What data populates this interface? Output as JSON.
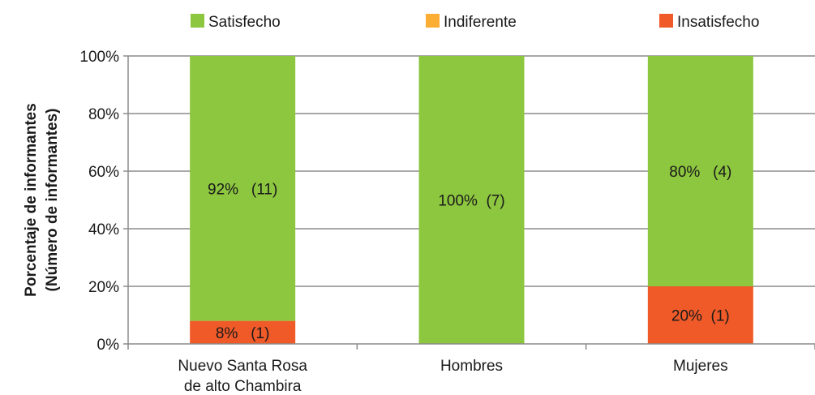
{
  "chart_data": {
    "type": "bar",
    "stacked": true,
    "percent": true,
    "categories": [
      [
        "Nuevo Santa Rosa",
        "de alto Chambira"
      ],
      [
        "Hombres"
      ],
      [
        "Mujeres"
      ]
    ],
    "series": [
      {
        "name": "Insatisfecho",
        "color": "#f05a28",
        "values": [
          8,
          0,
          20
        ],
        "labels": [
          "8%   (1)",
          "",
          "20%  (1)"
        ]
      },
      {
        "name": "Indiferente",
        "color": "#fbad34",
        "values": [
          0,
          0,
          0
        ],
        "labels": [
          "",
          "",
          ""
        ]
      },
      {
        "name": "Satisfecho",
        "color": "#8dc63f",
        "values": [
          92,
          100,
          80
        ],
        "labels": [
          "92%   (11)",
          "100%  (7)",
          "80%   (4)"
        ]
      }
    ],
    "legend_order": [
      "Satisfecho",
      "Indiferente",
      "Insatisfecho"
    ],
    "legend_position": "top",
    "ylabel": [
      "Porcentaje de informantes",
      "(Número de informantes)"
    ],
    "ylim": [
      0,
      100
    ],
    "yticks": [
      0,
      20,
      40,
      60,
      80,
      100
    ],
    "ytick_format": "{v}%",
    "grid": true,
    "grid_color": "#8c8c8c"
  }
}
